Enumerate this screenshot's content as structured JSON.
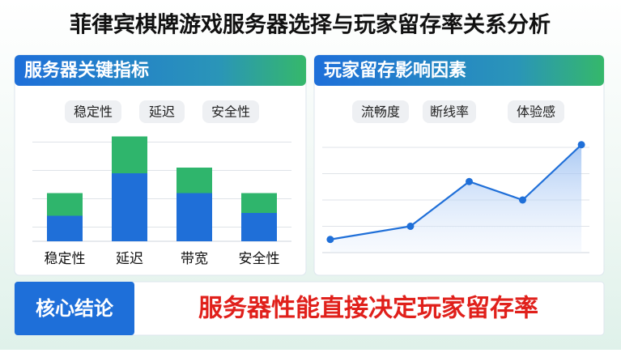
{
  "title": "菲律宾棋牌游戏服务器选择与玩家留存率关系分析",
  "chart_data": [
    {
      "type": "bar",
      "title": "服务器关键指标",
      "tags": [
        "稳定性",
        "延迟",
        "安全性"
      ],
      "categories": [
        "稳定性",
        "延迟",
        "带宽",
        "安全性"
      ],
      "series": [
        {
          "color": "#1f6fd8",
          "values": [
            0.9,
            2.4,
            1.7,
            1.0
          ]
        },
        {
          "color": "#2fb56c",
          "values": [
            0.8,
            1.3,
            0.9,
            0.7
          ]
        }
      ],
      "ylim": [
        0,
        4.5
      ],
      "yticks": [
        0.5,
        1.5,
        2.5,
        3.5
      ],
      "grid": true
    },
    {
      "type": "line",
      "title": "玩家留存影响因素",
      "tags": [
        "流畅度",
        "断线率",
        "体验感"
      ],
      "x": [
        0.3,
        3.3,
        5.5,
        7.5,
        9.7
      ],
      "values": [
        0.5,
        1.0,
        2.7,
        2.0,
        4.1
      ],
      "color": "#1f6fd8",
      "xlim": [
        0,
        10
      ],
      "ylim": [
        0,
        5
      ],
      "yticks": [
        1,
        2,
        3,
        4
      ],
      "grid": true
    }
  ],
  "conclusion": {
    "label": "核心结论",
    "text": "服务器性能直接决定玩家留存率"
  }
}
